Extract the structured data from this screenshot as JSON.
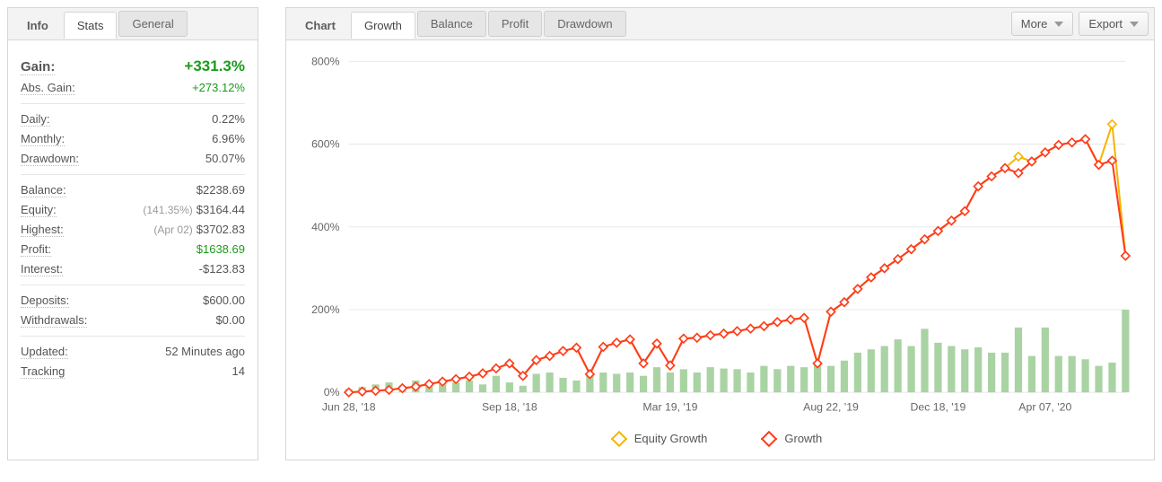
{
  "leftTabs": {
    "label": "Info",
    "active": "Stats",
    "other": "General"
  },
  "rightTabs": {
    "label": "Chart",
    "active": "Growth",
    "others": [
      "Balance",
      "Profit",
      "Drawdown"
    ],
    "more": "More",
    "export": "Export"
  },
  "stats": {
    "g1": [
      {
        "k": "Gain:",
        "v": "+331.3%",
        "big": true,
        "green": true
      },
      {
        "k": "Abs. Gain:",
        "v": "+273.12%",
        "green": true
      }
    ],
    "g2": [
      {
        "k": "Daily:",
        "v": "0.22%"
      },
      {
        "k": "Monthly:",
        "v": "6.96%"
      },
      {
        "k": "Drawdown:",
        "v": "50.07%"
      }
    ],
    "g3": [
      {
        "k": "Balance:",
        "v": "$2238.69"
      },
      {
        "k": "Equity:",
        "sub": "(141.35%)",
        "v": "$3164.44"
      },
      {
        "k": "Highest:",
        "sub": "(Apr 02)",
        "v": "$3702.83"
      },
      {
        "k": "Profit:",
        "v": "$1638.69",
        "green": true
      },
      {
        "k": "Interest:",
        "v": "-$123.83"
      }
    ],
    "g4": [
      {
        "k": "Deposits:",
        "v": "$600.00"
      },
      {
        "k": "Withdrawals:",
        "v": "$0.00"
      }
    ],
    "g5": [
      {
        "k": "Updated:",
        "v": "52 Minutes ago"
      },
      {
        "k": "Tracking",
        "v": "14"
      }
    ]
  },
  "chart": {
    "type": "line_with_bars",
    "ylim": [
      0,
      800
    ],
    "ytick_step": 200,
    "ysuffix": "%",
    "x_ticks": [
      "Jun 28, '18",
      "Sep 18, '18",
      "Mar 19, '19",
      "Aug 22, '19",
      "Dec 18, '19",
      "Apr 07, '20"
    ],
    "x_tick_idx": [
      0,
      12,
      24,
      36,
      44,
      52
    ],
    "colors": {
      "grid": "#e8e8e8",
      "axis_text": "#666666",
      "bar": "#a9d3a3",
      "growth_line": "#ff3c1f",
      "growth_marker_border": "#ff3c1f",
      "equity_line": "#f7b500",
      "equity_marker_border": "#f7b500",
      "marker_fill": "#ffffff",
      "bg": "#ffffff"
    },
    "axis_fontsize": 12,
    "bar_width": 0.55,
    "marker_size": 4.5,
    "line_width": 2,
    "growth": [
      0,
      2,
      4,
      6,
      10,
      14,
      20,
      26,
      32,
      38,
      46,
      58,
      70,
      40,
      78,
      88,
      100,
      108,
      44,
      110,
      120,
      128,
      70,
      118,
      65,
      130,
      132,
      138,
      142,
      148,
      154,
      160,
      170,
      176,
      180,
      70,
      195,
      218,
      250,
      278,
      300,
      322,
      346,
      370,
      390,
      415,
      438,
      498,
      522,
      542,
      530,
      558,
      580,
      598,
      604,
      612,
      550,
      560,
      330
    ],
    "equity": [
      0,
      2,
      4,
      6,
      10,
      14,
      20,
      26,
      32,
      38,
      46,
      58,
      70,
      40,
      78,
      88,
      100,
      108,
      44,
      110,
      120,
      128,
      70,
      118,
      65,
      130,
      132,
      138,
      142,
      148,
      154,
      160,
      170,
      176,
      180,
      70,
      195,
      218,
      250,
      278,
      300,
      322,
      346,
      370,
      390,
      415,
      438,
      498,
      522,
      542,
      570,
      558,
      580,
      598,
      604,
      612,
      550,
      648,
      330
    ],
    "bars": [
      5,
      8,
      12,
      15,
      10,
      18,
      12,
      20,
      15,
      18,
      12,
      25,
      15,
      10,
      28,
      30,
      22,
      18,
      25,
      30,
      28,
      30,
      25,
      38,
      30,
      35,
      30,
      38,
      36,
      35,
      30,
      40,
      35,
      40,
      38,
      42,
      40,
      48,
      60,
      65,
      70,
      80,
      70,
      96,
      75,
      70,
      65,
      68,
      60,
      60,
      98,
      55,
      98,
      55,
      55,
      50,
      40,
      45,
      125
    ],
    "legend": {
      "equity": "Equity Growth",
      "growth": "Growth"
    }
  }
}
